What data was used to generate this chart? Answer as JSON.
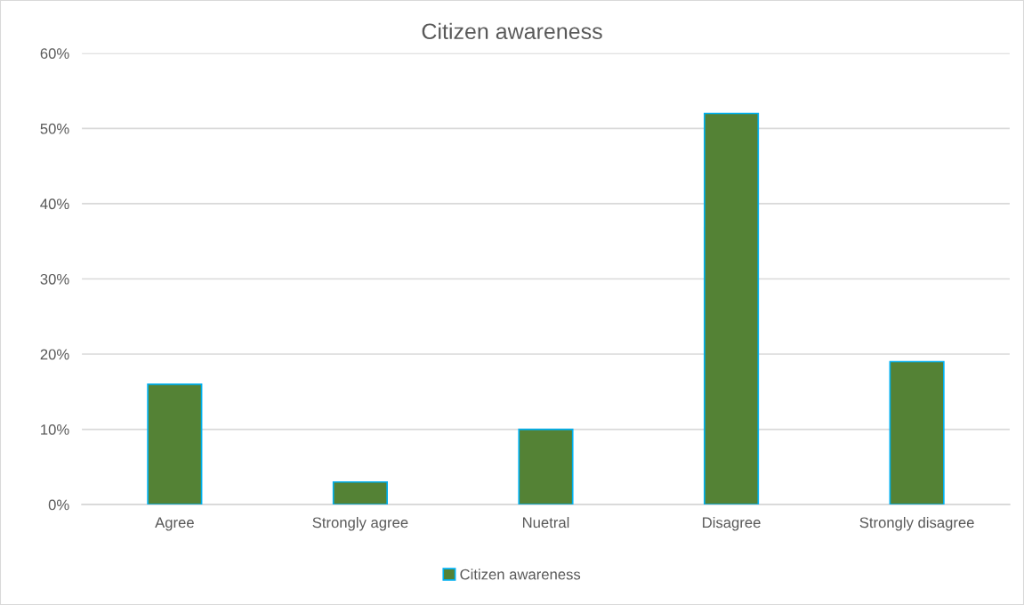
{
  "chart_data": {
    "type": "bar",
    "title": "Citizen awareness",
    "categories": [
      "Agree",
      "Strongly agree",
      "Nuetral",
      "Disagree",
      "Strongly disagree"
    ],
    "series": [
      {
        "name": "Citizen awareness",
        "color": "#548235",
        "values": [
          16,
          3,
          10,
          52,
          19
        ]
      }
    ],
    "ylim": [
      0,
      60
    ],
    "yticks": [
      {
        "value": 0,
        "label": "0%"
      },
      {
        "value": 10,
        "label": "10%"
      },
      {
        "value": 20,
        "label": "20%"
      },
      {
        "value": 30,
        "label": "30%"
      },
      {
        "value": 40,
        "label": "40%"
      },
      {
        "value": 50,
        "label": "50%"
      },
      {
        "value": 60,
        "label": "60%"
      }
    ],
    "grid": "y",
    "legend": "bottom"
  }
}
